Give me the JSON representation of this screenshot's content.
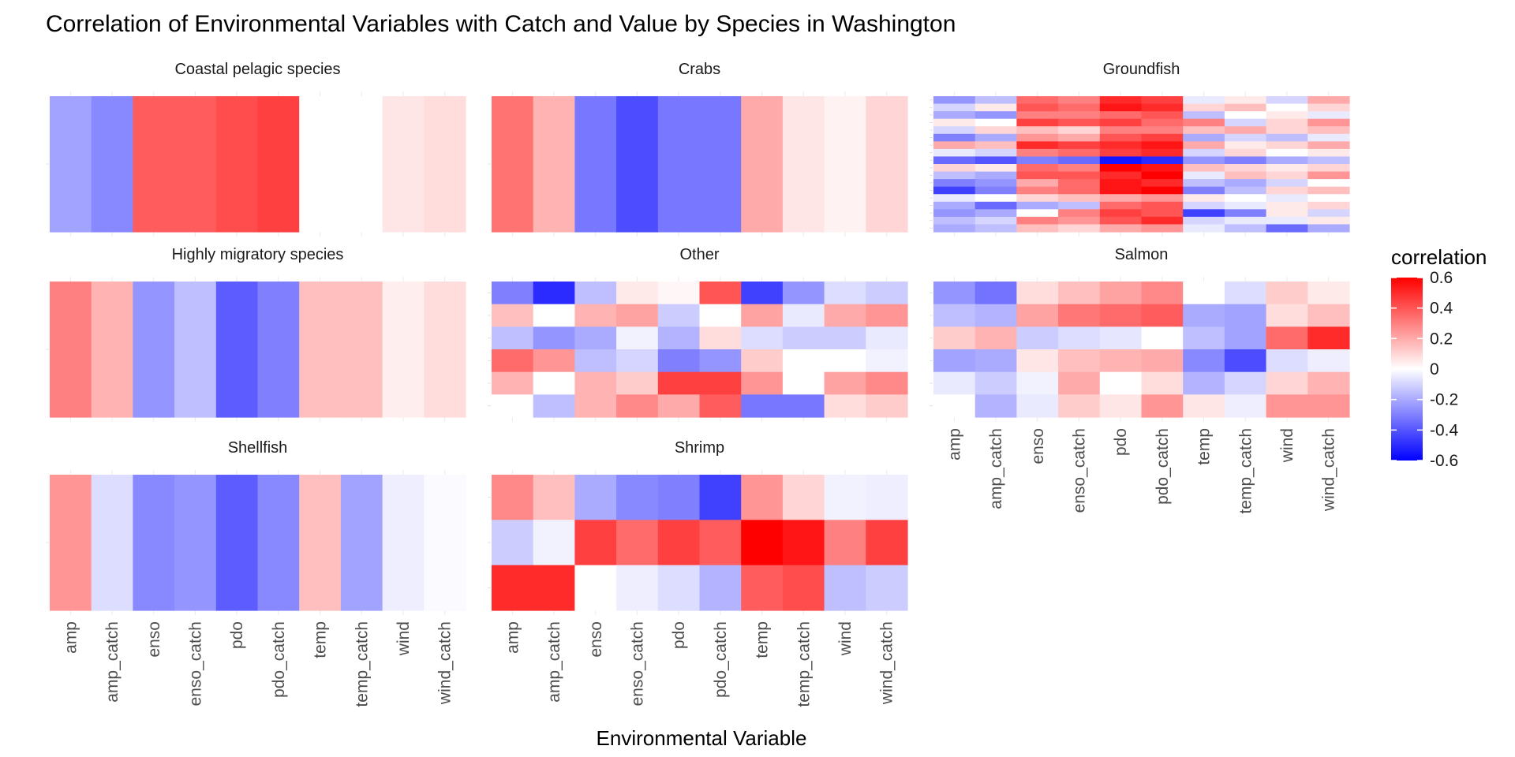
{
  "chart_data": {
    "type": "heatmap",
    "title": "Correlation of Environmental Variables with Catch and Value by Species in Washington",
    "xlabel": "Environmental Variable",
    "ylabel": "",
    "variables": [
      "amp",
      "amp_catch",
      "enso",
      "enso_catch",
      "pdo",
      "pdo_catch",
      "temp",
      "temp_catch",
      "wind",
      "wind_catch"
    ],
    "color_scale": {
      "low": "#0000FF",
      "mid": "#FFFFFF",
      "high": "#FF0000",
      "limits": [
        -0.6,
        0.6
      ]
    },
    "legend": {
      "title": "correlation",
      "position": "right",
      "breaks": [
        0.6,
        0.4,
        0.2,
        0,
        -0.2,
        -0.4,
        -0.6
      ],
      "labels": [
        "0.6",
        "0.4",
        "0.2",
        "0",
        "-0.2",
        "-0.4",
        "-0.6"
      ]
    },
    "facets": [
      {
        "name": "Coastal pelagic species",
        "rows": [
          [
            -0.22,
            -0.28,
            0.38,
            0.38,
            0.42,
            0.45,
            0.0,
            0.0,
            0.06,
            0.08
          ]
        ]
      },
      {
        "name": "Crabs",
        "rows": [
          [
            0.33,
            0.18,
            -0.32,
            -0.42,
            -0.32,
            -0.32,
            0.2,
            0.06,
            0.03,
            0.1
          ]
        ]
      },
      {
        "name": "Groundfish",
        "rows": [
          [
            -0.25,
            -0.15,
            0.35,
            0.3,
            0.5,
            0.45,
            -0.05,
            0.05,
            -0.1,
            0.2
          ],
          [
            -0.1,
            0.05,
            0.4,
            0.35,
            0.55,
            0.5,
            0.1,
            0.15,
            0.0,
            0.1
          ],
          [
            -0.2,
            -0.25,
            0.3,
            0.3,
            0.35,
            0.4,
            -0.15,
            0.0,
            0.05,
            -0.05
          ],
          [
            0.05,
            0.0,
            0.45,
            0.4,
            0.45,
            0.35,
            0.3,
            -0.1,
            0.1,
            0.25
          ],
          [
            -0.1,
            0.1,
            0.15,
            0.1,
            0.3,
            0.3,
            0.15,
            0.2,
            0.1,
            0.15
          ],
          [
            -0.3,
            -0.2,
            0.25,
            0.2,
            0.4,
            0.45,
            -0.2,
            -0.1,
            -0.15,
            -0.05
          ],
          [
            0.2,
            0.15,
            0.5,
            0.45,
            0.5,
            0.55,
            0.2,
            0.05,
            0.1,
            0.2
          ],
          [
            -0.05,
            -0.1,
            0.3,
            0.35,
            0.45,
            0.5,
            -0.1,
            0.1,
            0.0,
            0.05
          ],
          [
            -0.35,
            -0.4,
            -0.3,
            -0.35,
            -0.55,
            -0.5,
            -0.25,
            -0.3,
            -0.2,
            -0.15
          ],
          [
            0.1,
            0.05,
            0.35,
            0.3,
            0.6,
            0.55,
            0.15,
            0.1,
            0.05,
            0.1
          ],
          [
            -0.15,
            -0.2,
            0.4,
            0.4,
            0.5,
            0.6,
            -0.05,
            0.15,
            0.1,
            0.25
          ],
          [
            -0.3,
            -0.25,
            0.2,
            0.35,
            0.55,
            0.5,
            -0.15,
            -0.2,
            -0.1,
            0.0
          ],
          [
            -0.45,
            -0.3,
            0.3,
            0.35,
            0.55,
            0.6,
            -0.3,
            -0.15,
            0.1,
            0.15
          ],
          [
            -0.05,
            0.0,
            0.1,
            0.15,
            0.2,
            0.25,
            0.05,
            0.0,
            -0.05,
            0.0
          ],
          [
            -0.2,
            -0.35,
            -0.2,
            -0.15,
            0.35,
            0.4,
            -0.1,
            -0.05,
            0.05,
            0.1
          ],
          [
            -0.25,
            -0.2,
            0.0,
            0.3,
            0.45,
            0.4,
            -0.45,
            -0.3,
            0.05,
            -0.1
          ],
          [
            -0.15,
            -0.1,
            0.3,
            0.25,
            0.4,
            0.5,
            -0.1,
            -0.05,
            -0.05,
            0.05
          ],
          [
            -0.2,
            -0.15,
            0.15,
            0.1,
            0.2,
            0.25,
            -0.05,
            -0.15,
            -0.35,
            -0.2
          ]
        ]
      },
      {
        "name": "Highly migratory species",
        "rows": [
          [
            0.3,
            0.18,
            -0.25,
            -0.15,
            -0.38,
            -0.3,
            0.15,
            0.15,
            0.04,
            0.08
          ]
        ]
      },
      {
        "name": "Other",
        "rows": [
          [
            -0.3,
            -0.5,
            -0.15,
            0.05,
            0.02,
            0.4,
            -0.45,
            -0.25,
            -0.08,
            -0.12
          ],
          [
            0.15,
            0.0,
            0.18,
            0.22,
            -0.12,
            0.0,
            0.22,
            -0.05,
            0.2,
            0.25
          ],
          [
            -0.15,
            -0.25,
            -0.2,
            -0.03,
            -0.18,
            0.08,
            -0.08,
            -0.12,
            -0.12,
            -0.05
          ],
          [
            0.35,
            0.25,
            -0.15,
            -0.1,
            -0.3,
            -0.25,
            0.12,
            0.0,
            0.0,
            -0.03
          ],
          [
            0.18,
            0.0,
            0.18,
            0.12,
            0.45,
            0.45,
            0.25,
            0.0,
            0.22,
            0.28
          ],
          [
            0.0,
            -0.15,
            0.18,
            0.28,
            0.2,
            0.38,
            -0.32,
            -0.32,
            0.08,
            0.12
          ]
        ]
      },
      {
        "name": "Salmon",
        "rows": [
          [
            -0.25,
            -0.33,
            0.08,
            0.15,
            0.22,
            0.28,
            0.0,
            -0.08,
            0.12,
            0.05
          ],
          [
            -0.15,
            -0.18,
            0.22,
            0.32,
            0.35,
            0.38,
            -0.2,
            -0.22,
            0.08,
            0.15
          ],
          [
            0.12,
            0.18,
            -0.12,
            -0.08,
            -0.06,
            0.0,
            -0.15,
            -0.22,
            0.35,
            0.5
          ],
          [
            -0.22,
            -0.2,
            0.06,
            0.15,
            0.18,
            0.2,
            -0.28,
            -0.42,
            -0.08,
            -0.04
          ],
          [
            -0.05,
            -0.12,
            -0.03,
            0.2,
            0.0,
            0.08,
            -0.18,
            -0.1,
            0.1,
            0.18
          ],
          [
            0.0,
            -0.18,
            -0.05,
            0.12,
            0.06,
            0.25,
            0.06,
            -0.04,
            0.25,
            0.25
          ]
        ]
      },
      {
        "name": "Shellfish",
        "rows": [
          [
            0.25,
            -0.08,
            -0.28,
            -0.25,
            -0.38,
            -0.28,
            0.15,
            -0.22,
            -0.04,
            -0.01
          ]
        ]
      },
      {
        "name": "Shrimp",
        "rows": [
          [
            0.28,
            0.15,
            -0.2,
            -0.28,
            -0.3,
            -0.45,
            0.25,
            0.1,
            -0.03,
            -0.04
          ],
          [
            -0.12,
            -0.03,
            0.45,
            0.35,
            0.45,
            0.38,
            0.65,
            0.55,
            0.3,
            0.45
          ],
          [
            0.5,
            0.5,
            0.0,
            -0.04,
            -0.08,
            -0.18,
            0.38,
            0.42,
            -0.15,
            -0.12
          ]
        ]
      }
    ]
  }
}
